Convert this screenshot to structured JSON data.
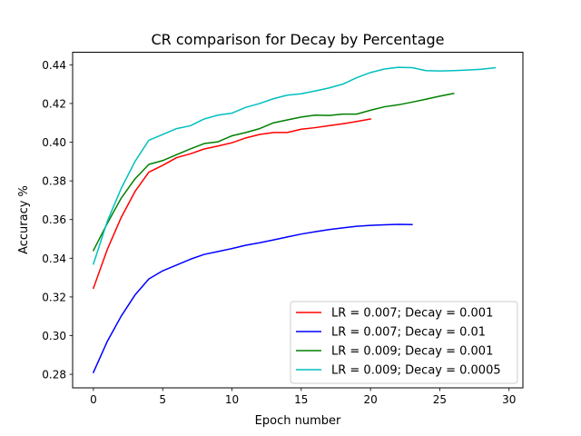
{
  "chart_data": {
    "type": "line",
    "title": "CR comparison for Decay by Percentage",
    "xlabel": "Epoch number",
    "ylabel": "Accuracy %",
    "xlim": [
      -1.5,
      31.0
    ],
    "ylim": [
      0.273,
      0.4465
    ],
    "xticks": [
      0,
      5,
      10,
      15,
      20,
      25,
      30
    ],
    "xtick_labels": [
      "0",
      "5",
      "10",
      "15",
      "20",
      "25",
      "30"
    ],
    "yticks": [
      0.28,
      0.3,
      0.32,
      0.34,
      0.36,
      0.38,
      0.4,
      0.42,
      0.44
    ],
    "ytick_labels": [
      "0.28",
      "0.30",
      "0.32",
      "0.34",
      "0.36",
      "0.38",
      "0.40",
      "0.42",
      "0.44"
    ],
    "grid": false,
    "legend_position": "lower-right",
    "series": [
      {
        "name": "LR = 0.007; Decay = 0.001",
        "color": "#ff0000",
        "x": [
          0,
          1,
          2,
          3,
          4,
          5,
          6,
          7,
          8,
          9,
          10,
          11,
          12,
          13,
          14,
          15,
          16,
          17,
          18,
          19,
          20
        ],
        "y": [
          0.3245,
          0.3445,
          0.361,
          0.3745,
          0.3845,
          0.388,
          0.392,
          0.394,
          0.3965,
          0.398,
          0.3997,
          0.4022,
          0.404,
          0.405,
          0.405,
          0.4067,
          0.4075,
          0.4085,
          0.4095,
          0.4107,
          0.412
        ]
      },
      {
        "name": "LR = 0.007; Decay = 0.01",
        "color": "#0000ff",
        "x": [
          0,
          1,
          2,
          3,
          4,
          5,
          6,
          7,
          8,
          9,
          10,
          11,
          12,
          13,
          14,
          15,
          16,
          17,
          18,
          19,
          20,
          21,
          22,
          23
        ],
        "y": [
          0.281,
          0.297,
          0.31,
          0.321,
          0.3293,
          0.3335,
          0.3365,
          0.3395,
          0.342,
          0.3435,
          0.345,
          0.3467,
          0.348,
          0.3495,
          0.351,
          0.3525,
          0.3537,
          0.3548,
          0.3557,
          0.3565,
          0.357,
          0.3573,
          0.3575,
          0.3574
        ]
      },
      {
        "name": "LR = 0.009; Decay = 0.001",
        "color": "#008000",
        "x": [
          0,
          1,
          2,
          3,
          4,
          5,
          6,
          7,
          8,
          9,
          10,
          11,
          12,
          13,
          14,
          15,
          16,
          17,
          18,
          19,
          20,
          21,
          22,
          23,
          24,
          25,
          26
        ],
        "y": [
          0.344,
          0.358,
          0.371,
          0.381,
          0.3885,
          0.3905,
          0.3935,
          0.3965,
          0.3993,
          0.4002,
          0.4033,
          0.405,
          0.407,
          0.41,
          0.4115,
          0.413,
          0.414,
          0.4138,
          0.4145,
          0.4145,
          0.4165,
          0.4183,
          0.4193,
          0.4207,
          0.4222,
          0.4238,
          0.4252
        ]
      },
      {
        "name": "LR = 0.009; Decay = 0.0005",
        "color": "#00bfbf",
        "x": [
          0,
          1,
          2,
          3,
          4,
          5,
          6,
          7,
          8,
          9,
          10,
          11,
          12,
          13,
          14,
          15,
          16,
          17,
          18,
          19,
          20,
          21,
          22,
          23,
          24,
          25,
          26,
          27,
          28,
          29
        ],
        "y": [
          0.337,
          0.359,
          0.376,
          0.39,
          0.401,
          0.404,
          0.407,
          0.4085,
          0.412,
          0.414,
          0.415,
          0.418,
          0.42,
          0.4225,
          0.4243,
          0.425,
          0.4265,
          0.428,
          0.43,
          0.4333,
          0.436,
          0.4378,
          0.4387,
          0.4385,
          0.437,
          0.4368,
          0.437,
          0.4373,
          0.4377,
          0.4385
        ]
      }
    ]
  }
}
